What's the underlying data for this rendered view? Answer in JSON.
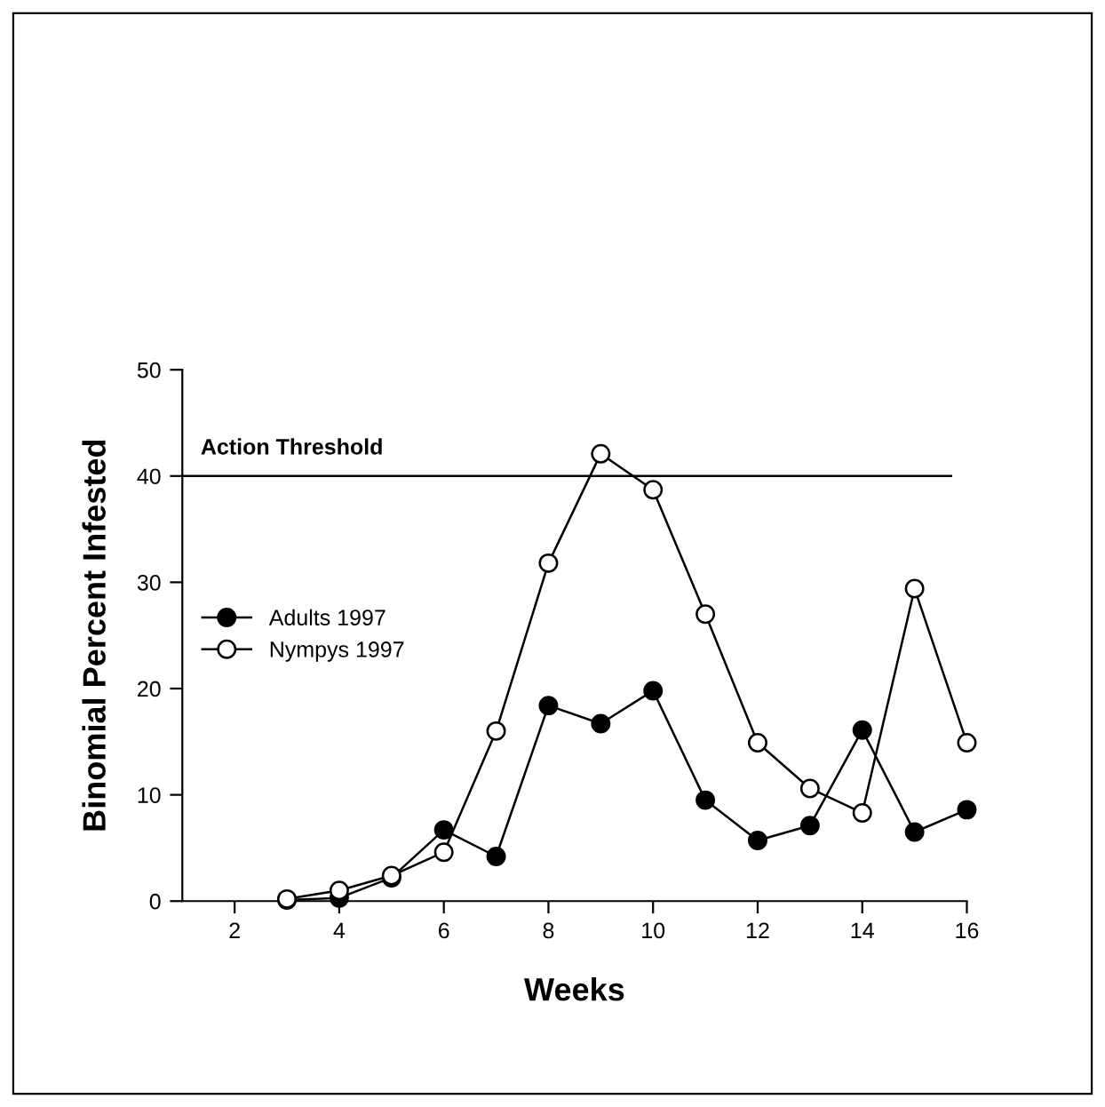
{
  "chart_data": {
    "type": "line",
    "xlabel": "Weeks",
    "ylabel": "Binomial Percent Infested",
    "x": [
      3,
      4,
      5,
      6,
      7,
      8,
      9,
      10,
      11,
      12,
      13,
      14,
      15,
      16
    ],
    "series": [
      {
        "name": "Adults 1997",
        "color": "#000000",
        "marker": "circle",
        "values": [
          0.1,
          0.3,
          2.2,
          6.7,
          4.2,
          18.4,
          16.7,
          19.8,
          9.5,
          5.7,
          7.1,
          16.1,
          6.5,
          8.6
        ]
      },
      {
        "name": "Nympys 1997",
        "color": "#000000",
        "marker": "circle",
        "values": [
          0.2,
          1.0,
          2.4,
          4.6,
          16.0,
          31.8,
          42.1,
          38.7,
          27.0,
          14.9,
          10.6,
          8.3,
          29.4,
          14.9
        ]
      }
    ],
    "xlim": [
      1,
      16
    ],
    "xticks": [
      2,
      4,
      6,
      8,
      10,
      12,
      14,
      16
    ],
    "ylim": [
      0,
      50
    ],
    "yticks": [
      0,
      10,
      20,
      30,
      40,
      50
    ],
    "ref_lines": [
      {
        "axis": "y",
        "value": 40,
        "label": "Action Threshold",
        "color": "#000000"
      }
    ],
    "grid": false,
    "legend": "left",
    "line_style": "solid"
  }
}
